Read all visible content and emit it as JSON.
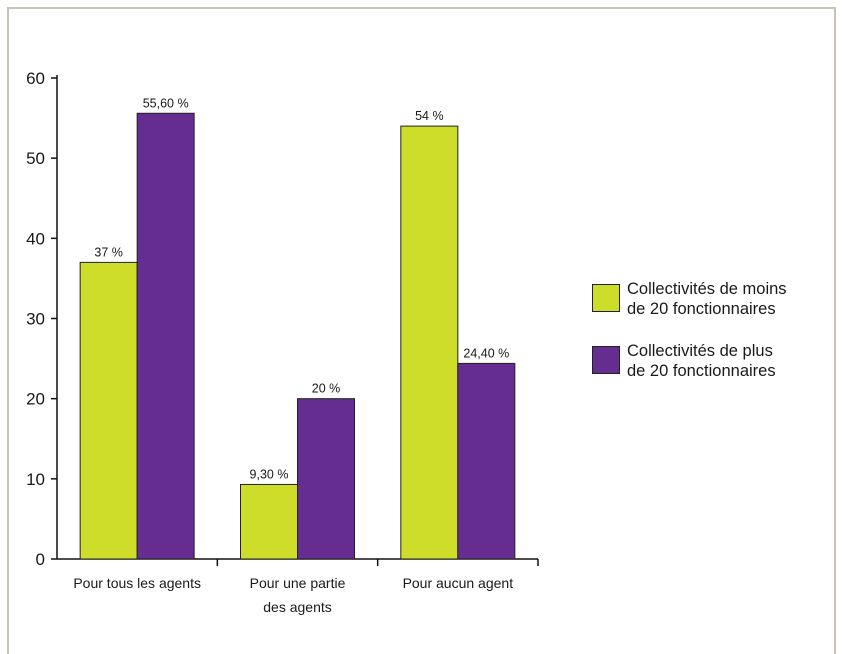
{
  "chart_data": {
    "type": "bar",
    "categories": [
      [
        "Pour tous les agents"
      ],
      [
        "Pour une partie",
        "des agents"
      ],
      [
        "Pour aucun agent"
      ]
    ],
    "series": [
      {
        "name": "Collectivités de moins\nde 20 fonctionnaires",
        "color": "#cedc2a",
        "values": [
          37,
          9.3,
          54
        ],
        "labels": [
          "37 %",
          "9,30 %",
          "54 %"
        ]
      },
      {
        "name": "Collectivités de plus\nde 20 fonctionnaires",
        "color": "#662d91",
        "values": [
          55.6,
          20,
          24.4
        ],
        "labels": [
          "55,60 %",
          "20 %",
          "24,40 %"
        ]
      }
    ],
    "ylim": [
      0,
      60
    ],
    "yticks": [
      0,
      10,
      20,
      30,
      40,
      50,
      60
    ],
    "legend_position": "right",
    "grid": false
  }
}
